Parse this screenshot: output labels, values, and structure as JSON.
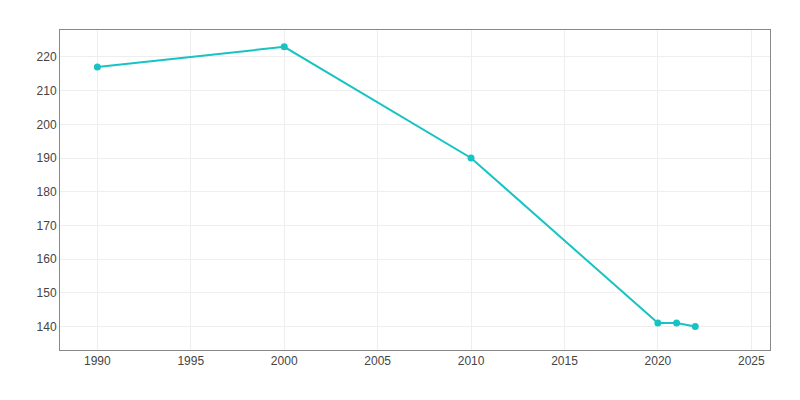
{
  "chart_data": {
    "type": "line",
    "x": [
      1990,
      2000,
      2010,
      2020,
      2021,
      2022
    ],
    "values": [
      217,
      223,
      190,
      141,
      141,
      140
    ],
    "color": "#17c3c3",
    "marker": "circle",
    "line_style": "solid",
    "xlim": [
      1988,
      2026
    ],
    "ylim": [
      133,
      228
    ],
    "xticks": [
      1990,
      1995,
      2000,
      2005,
      2010,
      2015,
      2020,
      2025
    ],
    "yticks": [
      140,
      150,
      160,
      170,
      180,
      190,
      200,
      210,
      220
    ],
    "grid": true
  }
}
